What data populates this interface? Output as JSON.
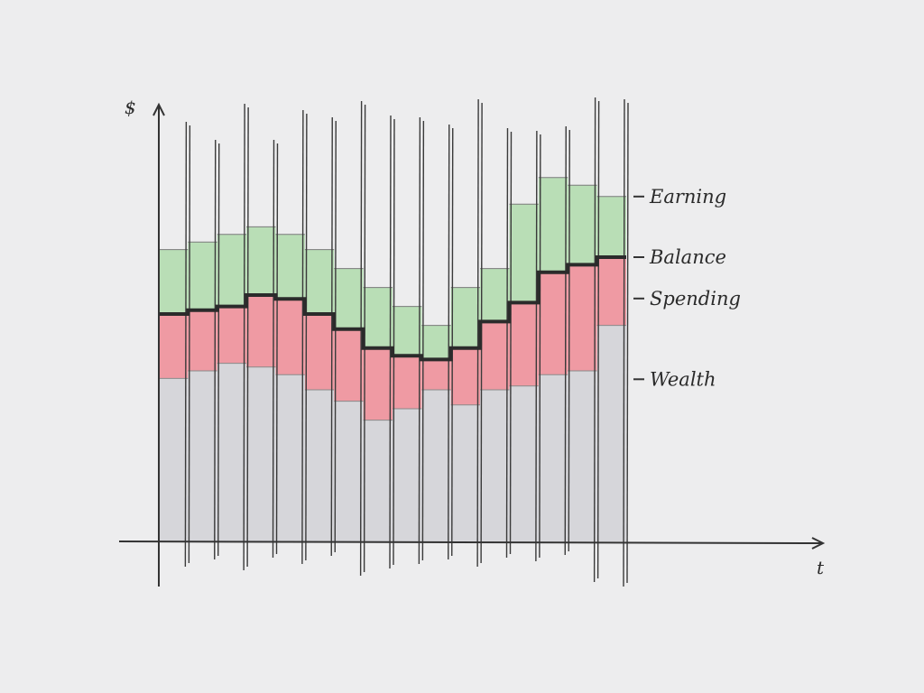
{
  "chart_data": {
    "type": "bar",
    "title": "",
    "xlabel": "t",
    "ylabel": "$",
    "legend_position": "right",
    "series_labels": {
      "earning": "Earning",
      "balance": "Balance",
      "spending": "Spending",
      "wealth": "Wealth"
    },
    "colors": {
      "earning": "#b9deb6",
      "spending": "#ef9aa3",
      "wealth": "#d6d6da",
      "balance": "#2b2b2b",
      "ink": "#333333"
    },
    "ylim": [
      0,
      100
    ],
    "x": [
      1,
      2,
      3,
      4,
      5,
      6,
      7,
      8,
      9,
      10,
      11,
      12,
      13,
      14,
      15,
      16
    ],
    "wealth": [
      43,
      45,
      47,
      46,
      44,
      40,
      37,
      32,
      35,
      40,
      36,
      40,
      41,
      44,
      45,
      57
    ],
    "balance": [
      60,
      61,
      62,
      65,
      64,
      60,
      56,
      51,
      49,
      48,
      51,
      58,
      63,
      71,
      73,
      75
    ],
    "earning": [
      77,
      79,
      81,
      83,
      81,
      77,
      72,
      67,
      62,
      57,
      67,
      72,
      89,
      96,
      94,
      91
    ]
  }
}
